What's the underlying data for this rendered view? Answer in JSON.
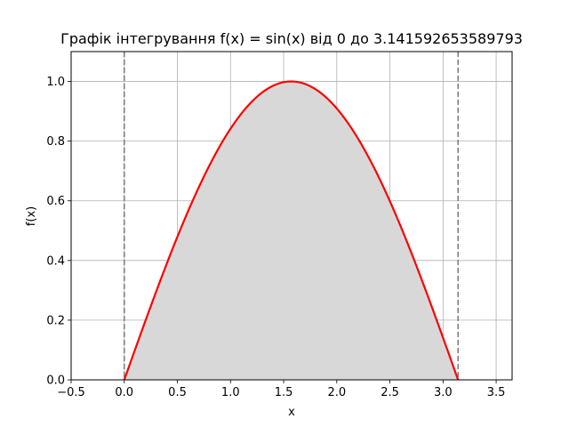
{
  "chart_data": {
    "type": "area",
    "title": "Графік інтегрування f(x) = sin(x) від 0 до 3.141592653589793",
    "xlabel": "x",
    "ylabel": "f(x)",
    "xlim": [
      -0.5,
      3.65
    ],
    "ylim": [
      0,
      1.1
    ],
    "xticks": [
      -0.5,
      0.0,
      0.5,
      1.0,
      1.5,
      2.0,
      2.5,
      3.0,
      3.5
    ],
    "xtick_labels": [
      "−0.5",
      "0.0",
      "0.5",
      "1.0",
      "1.5",
      "2.0",
      "2.5",
      "3.0",
      "3.5"
    ],
    "yticks": [
      0.0,
      0.2,
      0.4,
      0.6,
      0.8,
      1.0
    ],
    "ytick_labels": [
      "0.0",
      "0.2",
      "0.4",
      "0.6",
      "0.8",
      "1.0"
    ],
    "grid": true,
    "series": [
      {
        "function": "sin(x)",
        "x_range": [
          0,
          3.141592653589793
        ],
        "color": "#ff0000",
        "fill_color": "#d8d8d8"
      }
    ],
    "vlines": [
      {
        "x": 0,
        "style": "dashed",
        "color": "#808080"
      },
      {
        "x": 3.141592653589793,
        "style": "dashed",
        "color": "#808080"
      }
    ]
  }
}
